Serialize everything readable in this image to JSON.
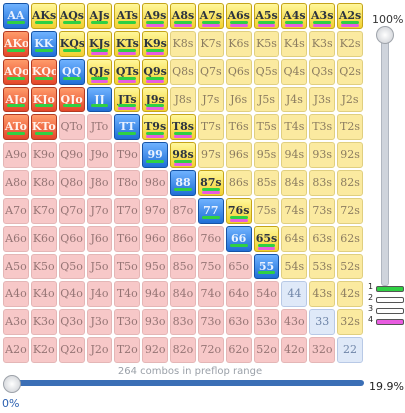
{
  "ranks": [
    "A",
    "K",
    "Q",
    "J",
    "T",
    "9",
    "8",
    "7",
    "6",
    "5",
    "4",
    "3",
    "2"
  ],
  "selected_hands": [
    "AA",
    "AKs",
    "AQs",
    "AJs",
    "ATs",
    "A9s",
    "A8s",
    "A7s",
    "A6s",
    "A5s",
    "A4s",
    "A3s",
    "A2s",
    "AKo",
    "KK",
    "KQs",
    "KJs",
    "KTs",
    "K9s",
    "AQo",
    "KQo",
    "QQ",
    "QJs",
    "QTs",
    "Q9s",
    "AJo",
    "KJo",
    "QJo",
    "JJ",
    "JTs",
    "J9s",
    "ATo",
    "KTo",
    "TT",
    "T9s",
    "T8s",
    "99",
    "98s",
    "88",
    "87s",
    "77",
    "76s",
    "66",
    "65s",
    "55"
  ],
  "weights": {
    "AA": [
      1,
      0
    ],
    "AKs": [
      1,
      0
    ],
    "AQs": [
      1,
      0
    ],
    "AJs": [
      1,
      0
    ],
    "ATs": [
      1,
      0
    ],
    "A9s": [
      1,
      1
    ],
    "A8s": [
      1,
      1
    ],
    "A7s": [
      1,
      1
    ],
    "A6s": [
      1,
      1
    ],
    "A5s": [
      1,
      1
    ],
    "A4s": [
      1,
      1
    ],
    "A3s": [
      1,
      1
    ],
    "A2s": [
      1,
      1
    ],
    "AKo": [
      1,
      0
    ],
    "KK": [
      1,
      0
    ],
    "KQs": [
      1,
      0
    ],
    "KJs": [
      1,
      1
    ],
    "KTs": [
      1,
      1
    ],
    "K9s": [
      1,
      1
    ],
    "AQo": [
      1,
      0
    ],
    "KQo": [
      1,
      0
    ],
    "QQ": [
      1,
      0
    ],
    "QJs": [
      1,
      1
    ],
    "QTs": [
      1,
      1
    ],
    "Q9s": [
      1,
      1
    ],
    "AJo": [
      1,
      0
    ],
    "KJo": [
      1,
      0
    ],
    "QJo": [
      1,
      0
    ],
    "JJ": [
      1,
      0
    ],
    "JTs": [
      1,
      1
    ],
    "J9s": [
      1,
      1
    ],
    "ATo": [
      1,
      0
    ],
    "KTo": [
      1,
      0
    ],
    "TT": [
      1,
      0
    ],
    "T9s": [
      1,
      1
    ],
    "T8s": [
      1,
      1
    ],
    "99": [
      1,
      0
    ],
    "98s": [
      1,
      1
    ],
    "88": [
      1,
      0
    ],
    "87s": [
      1,
      1
    ],
    "77": [
      1,
      0
    ],
    "76s": [
      1,
      1
    ],
    "66": [
      1,
      0
    ],
    "65s": [
      1,
      1
    ],
    "55": [
      1,
      0
    ]
  },
  "colors": {
    "bar1": "#2fd043",
    "bar2": "#e85ce0",
    "bar3": "#ffffff",
    "bar4": "#e85ce0"
  },
  "vslider": {
    "label": "100%",
    "value_percent": 100
  },
  "legend": [
    {
      "num": "1",
      "color": "#2fd043"
    },
    {
      "num": "2",
      "color": "#ffffff"
    },
    {
      "num": "3",
      "color": "#ffffff"
    },
    {
      "num": "4",
      "color": "#e85ce0"
    }
  ],
  "combos_text": "264 combos in preflop range",
  "range_percent_label": "19.9%",
  "hslider": {
    "min_label": "0%",
    "value_percent": 19.9
  }
}
